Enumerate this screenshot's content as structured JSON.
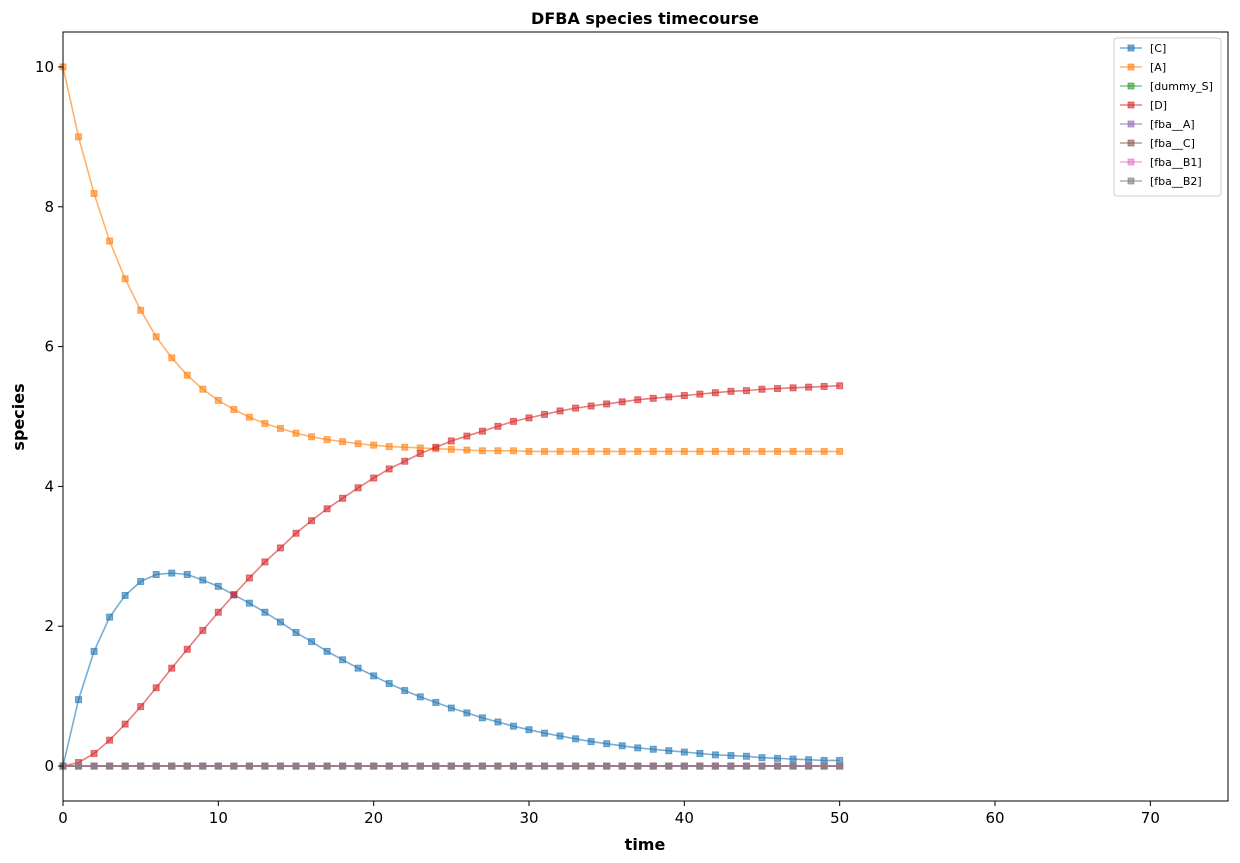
{
  "chart_data": {
    "type": "line",
    "title": "DFBA species timecourse",
    "xlabel": "time",
    "ylabel": "species",
    "xlim": [
      0,
      75
    ],
    "ylim": [
      -0.5,
      10.5
    ],
    "xticks": [
      0,
      10,
      20,
      30,
      40,
      50,
      60,
      70
    ],
    "yticks": [
      0,
      2,
      4,
      6,
      8,
      10
    ],
    "grid": false,
    "legend_position": "top-right",
    "marker": "square",
    "x": [
      0,
      1,
      2,
      3,
      4,
      5,
      6,
      7,
      8,
      9,
      10,
      11,
      12,
      13,
      14,
      15,
      16,
      17,
      18,
      19,
      20,
      21,
      22,
      23,
      24,
      25,
      26,
      27,
      28,
      29,
      30,
      31,
      32,
      33,
      34,
      35,
      36,
      37,
      38,
      39,
      40,
      41,
      42,
      43,
      44,
      45,
      46,
      47,
      48,
      49,
      50
    ],
    "series": [
      {
        "name": "[C]",
        "color": "#1f77b4",
        "values": [
          0.0,
          0.95,
          1.64,
          2.13,
          2.44,
          2.64,
          2.74,
          2.76,
          2.74,
          2.66,
          2.57,
          2.45,
          2.33,
          2.2,
          2.06,
          1.91,
          1.78,
          1.64,
          1.52,
          1.4,
          1.29,
          1.18,
          1.08,
          0.99,
          0.91,
          0.83,
          0.76,
          0.69,
          0.63,
          0.57,
          0.52,
          0.47,
          0.43,
          0.39,
          0.35,
          0.32,
          0.29,
          0.26,
          0.24,
          0.22,
          0.2,
          0.18,
          0.16,
          0.15,
          0.14,
          0.12,
          0.11,
          0.1,
          0.09,
          0.08,
          0.08
        ]
      },
      {
        "name": "[A]",
        "color": "#ff7f0e",
        "values": [
          10.0,
          9.0,
          8.19,
          7.51,
          6.97,
          6.52,
          6.14,
          5.84,
          5.59,
          5.39,
          5.23,
          5.1,
          4.99,
          4.9,
          4.83,
          4.76,
          4.71,
          4.67,
          4.64,
          4.61,
          4.59,
          4.57,
          4.56,
          4.55,
          4.54,
          4.53,
          4.52,
          4.51,
          4.51,
          4.51,
          4.5,
          4.5,
          4.5,
          4.5,
          4.5,
          4.5,
          4.5,
          4.5,
          4.5,
          4.5,
          4.5,
          4.5,
          4.5,
          4.5,
          4.5,
          4.5,
          4.5,
          4.5,
          4.5,
          4.5,
          4.5
        ]
      },
      {
        "name": "[dummy_S]",
        "color": "#2ca02c",
        "values": [
          0,
          0,
          0,
          0,
          0,
          0,
          0,
          0,
          0,
          0,
          0,
          0,
          0,
          0,
          0,
          0,
          0,
          0,
          0,
          0,
          0,
          0,
          0,
          0,
          0,
          0,
          0,
          0,
          0,
          0,
          0,
          0,
          0,
          0,
          0,
          0,
          0,
          0,
          0,
          0,
          0,
          0,
          0,
          0,
          0,
          0,
          0,
          0,
          0,
          0,
          0
        ]
      },
      {
        "name": "[D]",
        "color": "#d62728",
        "values": [
          0.0,
          0.05,
          0.18,
          0.37,
          0.6,
          0.85,
          1.12,
          1.4,
          1.67,
          1.94,
          2.2,
          2.45,
          2.69,
          2.92,
          3.12,
          3.33,
          3.51,
          3.68,
          3.83,
          3.98,
          4.12,
          4.25,
          4.36,
          4.47,
          4.56,
          4.65,
          4.72,
          4.79,
          4.86,
          4.93,
          4.98,
          5.03,
          5.08,
          5.12,
          5.15,
          5.18,
          5.21,
          5.24,
          5.26,
          5.28,
          5.3,
          5.32,
          5.34,
          5.36,
          5.37,
          5.39,
          5.4,
          5.41,
          5.42,
          5.43,
          5.44
        ]
      },
      {
        "name": "[fba__A]",
        "color": "#9467bd",
        "values": [
          0,
          0,
          0,
          0,
          0,
          0,
          0,
          0,
          0,
          0,
          0,
          0,
          0,
          0,
          0,
          0,
          0,
          0,
          0,
          0,
          0,
          0,
          0,
          0,
          0,
          0,
          0,
          0,
          0,
          0,
          0,
          0,
          0,
          0,
          0,
          0,
          0,
          0,
          0,
          0,
          0,
          0,
          0,
          0,
          0,
          0,
          0,
          0,
          0,
          0,
          0
        ]
      },
      {
        "name": "[fba__C]",
        "color": "#8c564b",
        "values": [
          0,
          0,
          0,
          0,
          0,
          0,
          0,
          0,
          0,
          0,
          0,
          0,
          0,
          0,
          0,
          0,
          0,
          0,
          0,
          0,
          0,
          0,
          0,
          0,
          0,
          0,
          0,
          0,
          0,
          0,
          0,
          0,
          0,
          0,
          0,
          0,
          0,
          0,
          0,
          0,
          0,
          0,
          0,
          0,
          0,
          0,
          0,
          0,
          0,
          0,
          0
        ]
      },
      {
        "name": "[fba__B1]",
        "color": "#e377c2",
        "values": [
          0,
          0,
          0,
          0,
          0,
          0,
          0,
          0,
          0,
          0,
          0,
          0,
          0,
          0,
          0,
          0,
          0,
          0,
          0,
          0,
          0,
          0,
          0,
          0,
          0,
          0,
          0,
          0,
          0,
          0,
          0,
          0,
          0,
          0,
          0,
          0,
          0,
          0,
          0,
          0,
          0,
          0,
          0,
          0,
          0,
          0,
          0,
          0,
          0,
          0,
          0
        ]
      },
      {
        "name": "[fba__B2]",
        "color": "#7f7f7f",
        "values": [
          0,
          0,
          0,
          0,
          0,
          0,
          0,
          0,
          0,
          0,
          0,
          0,
          0,
          0,
          0,
          0,
          0,
          0,
          0,
          0,
          0,
          0,
          0,
          0,
          0,
          0,
          0,
          0,
          0,
          0,
          0,
          0,
          0,
          0,
          0,
          0,
          0,
          0,
          0,
          0,
          0,
          0,
          0,
          0,
          0,
          0,
          0,
          0,
          0,
          0,
          0
        ]
      }
    ]
  }
}
